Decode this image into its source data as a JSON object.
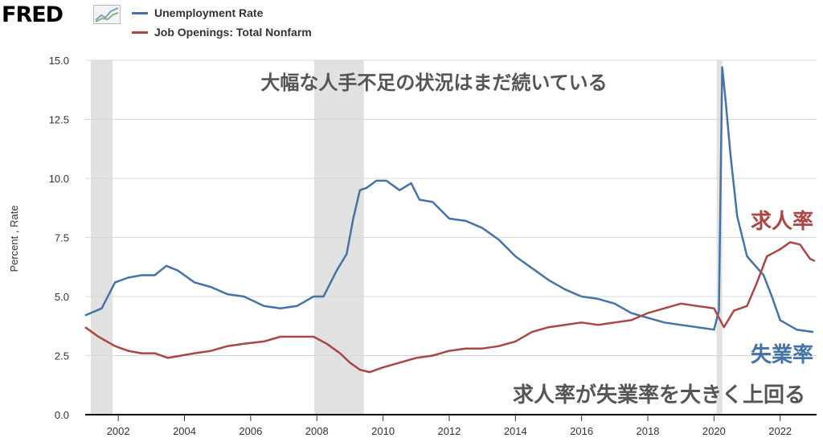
{
  "header": {
    "logo_text": "FRED",
    "logo_icon": "line-chart-icon"
  },
  "legend": [
    {
      "name": "Unemployment Rate",
      "color": "#4572a7"
    },
    {
      "name": "Job Openings: Total Nonfarm",
      "color": "#aa4643"
    }
  ],
  "annotations": {
    "top_text": "大幅な人手不足の状況はまだ続いている",
    "bottom_text": "求人率が失業率を大きく上回る",
    "job_label": "求人率",
    "unemp_label": "失業率"
  },
  "chart_data": {
    "type": "line",
    "ylabel": "Percent , Rate",
    "xlabel": "",
    "ylim": [
      0,
      15
    ],
    "xlim": [
      2001.0,
      2023.1
    ],
    "yticks": [
      "0.0",
      "2.5",
      "5.0",
      "7.5",
      "10.0",
      "12.5",
      "15.0"
    ],
    "xticks": [
      "2002",
      "2004",
      "2006",
      "2008",
      "2010",
      "2012",
      "2014",
      "2016",
      "2018",
      "2020",
      "2022"
    ],
    "grid": true,
    "recessions": [
      [
        2001.17,
        2001.83
      ],
      [
        2007.92,
        2009.42
      ],
      [
        2020.08,
        2020.25
      ]
    ],
    "series": [
      {
        "name": "Unemployment Rate",
        "color": "#4572a7",
        "x": [
          2001.0,
          2001.5,
          2001.9,
          2002.3,
          2002.7,
          2003.1,
          2003.45,
          2003.8,
          2004.3,
          2004.8,
          2005.3,
          2005.8,
          2006.4,
          2006.9,
          2007.4,
          2007.9,
          2008.2,
          2008.6,
          2008.9,
          2009.1,
          2009.3,
          2009.5,
          2009.8,
          2010.1,
          2010.5,
          2010.85,
          2011.1,
          2011.5,
          2012.0,
          2012.5,
          2013.0,
          2013.5,
          2014.0,
          2014.5,
          2015.0,
          2015.5,
          2016.0,
          2016.5,
          2017.0,
          2017.5,
          2018.0,
          2018.5,
          2019.0,
          2019.5,
          2020.0,
          2020.15,
          2020.25,
          2020.35,
          2020.5,
          2020.7,
          2021.0,
          2021.5,
          2021.75,
          2022.0,
          2022.5,
          2023.0
        ],
        "values": [
          4.2,
          4.5,
          5.6,
          5.8,
          5.9,
          5.9,
          6.3,
          6.1,
          5.6,
          5.4,
          5.1,
          5.0,
          4.6,
          4.5,
          4.6,
          5.0,
          5.0,
          6.1,
          6.8,
          8.3,
          9.5,
          9.6,
          9.9,
          9.9,
          9.5,
          9.8,
          9.1,
          9.0,
          8.3,
          8.2,
          7.9,
          7.4,
          6.7,
          6.2,
          5.7,
          5.3,
          5.0,
          4.9,
          4.7,
          4.3,
          4.1,
          3.9,
          3.8,
          3.7,
          3.6,
          4.4,
          14.7,
          13.3,
          11.0,
          8.4,
          6.7,
          5.9,
          5.0,
          4.0,
          3.6,
          3.5
        ]
      },
      {
        "name": "Job Openings: Total Nonfarm",
        "color": "#aa4643",
        "x": [
          2001.0,
          2001.4,
          2001.9,
          2002.3,
          2002.7,
          2003.1,
          2003.5,
          2003.9,
          2004.3,
          2004.8,
          2005.3,
          2005.8,
          2006.4,
          2006.9,
          2007.4,
          2007.9,
          2008.3,
          2008.7,
          2009.0,
          2009.3,
          2009.6,
          2010.0,
          2010.5,
          2011.0,
          2011.5,
          2012.0,
          2012.5,
          2013.0,
          2013.5,
          2014.0,
          2014.5,
          2015.0,
          2015.5,
          2016.0,
          2016.5,
          2017.0,
          2017.5,
          2018.0,
          2018.5,
          2019.0,
          2019.5,
          2020.0,
          2020.3,
          2020.6,
          2021.0,
          2021.3,
          2021.6,
          2022.0,
          2022.3,
          2022.6,
          2022.9,
          2023.05
        ],
        "values": [
          3.7,
          3.3,
          2.9,
          2.7,
          2.6,
          2.6,
          2.4,
          2.5,
          2.6,
          2.7,
          2.9,
          3.0,
          3.1,
          3.3,
          3.3,
          3.3,
          3.0,
          2.6,
          2.2,
          1.9,
          1.8,
          2.0,
          2.2,
          2.4,
          2.5,
          2.7,
          2.8,
          2.8,
          2.9,
          3.1,
          3.5,
          3.7,
          3.8,
          3.9,
          3.8,
          3.9,
          4.0,
          4.3,
          4.5,
          4.7,
          4.6,
          4.5,
          3.7,
          4.4,
          4.6,
          5.6,
          6.7,
          7.0,
          7.3,
          7.2,
          6.6,
          6.5
        ]
      }
    ]
  }
}
